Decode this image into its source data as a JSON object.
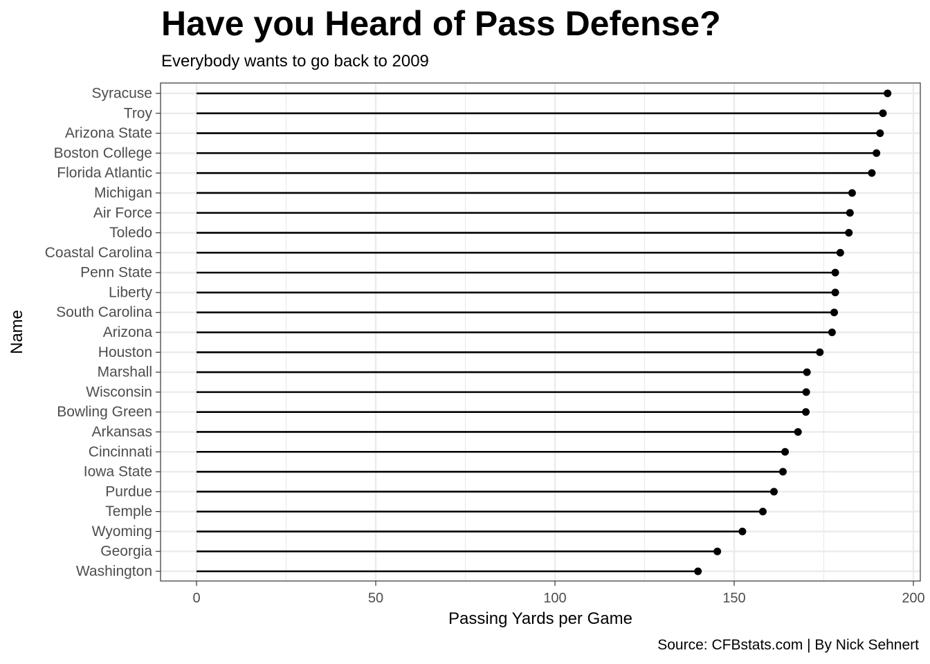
{
  "chart_data": {
    "type": "lollipop",
    "title": "Have you Heard of Pass Defense?",
    "subtitle": "Everybody wants to go back to 2009",
    "caption": "Source: CFBstats.com | By Nick Sehnert",
    "xlabel": "Passing Yards per Game",
    "ylabel": "Name",
    "xlim": [
      0,
      200
    ],
    "xticks": [
      0,
      50,
      100,
      150,
      200
    ],
    "grid": true,
    "categories": [
      "Syracuse",
      "Troy",
      "Arizona State",
      "Boston College",
      "Florida Atlantic",
      "Michigan",
      "Air Force",
      "Toledo",
      "Coastal Carolina",
      "Penn State",
      "Liberty",
      "South Carolina",
      "Arizona",
      "Houston",
      "Marshall",
      "Wisconsin",
      "Bowling Green",
      "Arkansas",
      "Cincinnati",
      "Iowa State",
      "Purdue",
      "Temple",
      "Wyoming",
      "Georgia",
      "Washington"
    ],
    "values": [
      192.8,
      191.5,
      190.7,
      189.7,
      188.4,
      182.9,
      182.3,
      182.0,
      179.6,
      178.2,
      178.2,
      177.9,
      177.3,
      173.9,
      170.3,
      170.1,
      170.0,
      167.8,
      164.2,
      163.6,
      161.1,
      158.0,
      152.3,
      145.3,
      139.9
    ],
    "colors": {
      "line": "#000000",
      "point": "#000000",
      "grid": "#ebebeb",
      "border": "#333333"
    }
  }
}
